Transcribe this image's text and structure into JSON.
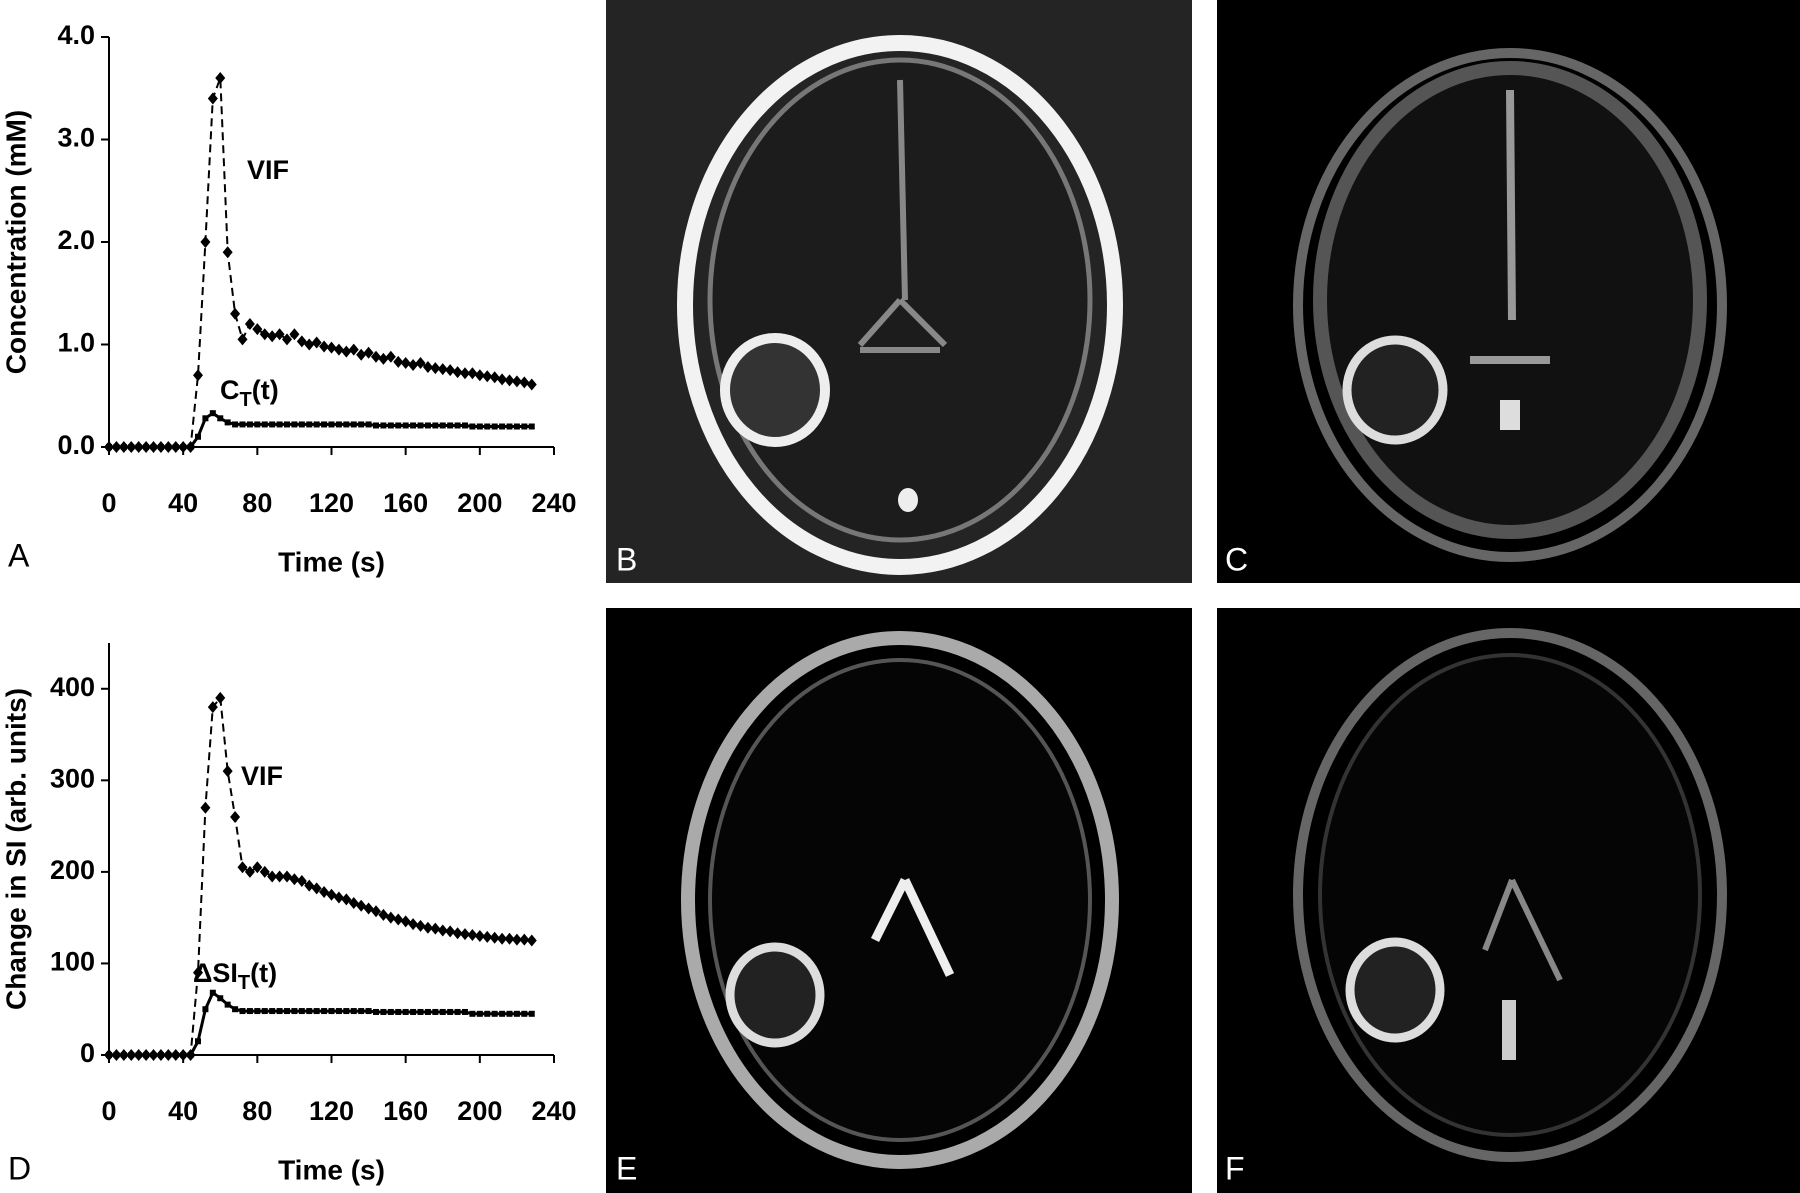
{
  "chart_data": [
    {
      "type": "line",
      "x": [
        0,
        4,
        8,
        12,
        16,
        20,
        24,
        28,
        32,
        36,
        40,
        44,
        48,
        52,
        56,
        60,
        64,
        68,
        72,
        76,
        80,
        84,
        88,
        92,
        96,
        100,
        104,
        108,
        112,
        116,
        120,
        124,
        128,
        132,
        136,
        140,
        144,
        148,
        152,
        156,
        160,
        164,
        168,
        172,
        176,
        180,
        184,
        188,
        192,
        196,
        200,
        204,
        208,
        212,
        216,
        220,
        224,
        228
      ],
      "series": [
        {
          "name": "VIF",
          "color": "#000000",
          "dash": true,
          "marker": "diamond",
          "values": [
            0,
            0,
            0,
            0,
            0,
            0,
            0,
            0,
            0,
            0,
            0,
            0,
            0.7,
            2.0,
            3.4,
            3.6,
            1.9,
            1.3,
            1.05,
            1.2,
            1.15,
            1.1,
            1.08,
            1.1,
            1.05,
            1.1,
            1.03,
            1.0,
            1.02,
            0.98,
            0.97,
            0.95,
            0.93,
            0.95,
            0.9,
            0.92,
            0.88,
            0.86,
            0.88,
            0.83,
            0.82,
            0.8,
            0.82,
            0.78,
            0.77,
            0.76,
            0.75,
            0.73,
            0.72,
            0.72,
            0.7,
            0.69,
            0.68,
            0.66,
            0.65,
            0.64,
            0.63,
            0.61
          ]
        },
        {
          "name": "C",
          "name_subscript": "T",
          "name_suffix": "(t)",
          "color": "#000000",
          "dash": false,
          "marker": "square",
          "values": [
            0,
            0,
            0,
            0,
            0,
            0,
            0,
            0,
            0,
            0,
            0,
            0,
            0.1,
            0.28,
            0.33,
            0.28,
            0.24,
            0.22,
            0.22,
            0.22,
            0.22,
            0.22,
            0.22,
            0.22,
            0.22,
            0.22,
            0.22,
            0.22,
            0.22,
            0.22,
            0.22,
            0.22,
            0.22,
            0.22,
            0.22,
            0.22,
            0.21,
            0.21,
            0.21,
            0.21,
            0.21,
            0.21,
            0.21,
            0.21,
            0.21,
            0.21,
            0.21,
            0.21,
            0.21,
            0.2,
            0.2,
            0.2,
            0.2,
            0.2,
            0.2,
            0.2,
            0.2,
            0.2
          ]
        }
      ],
      "x_label": "Time (s)",
      "y_label": "Concentration (mM)",
      "xlim": [
        0,
        240
      ],
      "xticks": [
        0,
        40,
        80,
        120,
        160,
        200,
        240
      ],
      "ylim": [
        0,
        4
      ],
      "yticks": [
        {
          "value": 0,
          "label": "0.0"
        },
        {
          "value": 1,
          "label": "1.0"
        },
        {
          "value": 2,
          "label": "2.0"
        },
        {
          "value": 3,
          "label": "3.0"
        },
        {
          "value": 4,
          "label": "4.0"
        }
      ]
    },
    {
      "type": "line",
      "x": [
        0,
        4,
        8,
        12,
        16,
        20,
        24,
        28,
        32,
        36,
        40,
        44,
        48,
        52,
        56,
        60,
        64,
        68,
        72,
        76,
        80,
        84,
        88,
        92,
        96,
        100,
        104,
        108,
        112,
        116,
        120,
        124,
        128,
        132,
        136,
        140,
        144,
        148,
        152,
        156,
        160,
        164,
        168,
        172,
        176,
        180,
        184,
        188,
        192,
        196,
        200,
        204,
        208,
        212,
        216,
        220,
        224,
        228
      ],
      "series": [
        {
          "name": "VIF",
          "color": "#000000",
          "dash": true,
          "marker": "diamond",
          "values": [
            0,
            0,
            0,
            0,
            0,
            0,
            0,
            0,
            0,
            0,
            0,
            0,
            90,
            270,
            380,
            390,
            310,
            260,
            205,
            200,
            205,
            200,
            195,
            195,
            195,
            192,
            190,
            185,
            182,
            178,
            175,
            172,
            170,
            166,
            163,
            160,
            157,
            153,
            150,
            148,
            146,
            143,
            141,
            139,
            138,
            136,
            135,
            133,
            132,
            131,
            130,
            129,
            128,
            127,
            127,
            126,
            126,
            125
          ]
        },
        {
          "name": "ΔSI",
          "name_subscript": "T",
          "name_suffix": "(t)",
          "color": "#000000",
          "dash": false,
          "marker": "square",
          "values": [
            0,
            0,
            0,
            0,
            0,
            0,
            0,
            0,
            0,
            0,
            0,
            0,
            15,
            50,
            68,
            62,
            55,
            50,
            48,
            48,
            48,
            48,
            48,
            48,
            48,
            48,
            48,
            48,
            48,
            48,
            48,
            48,
            48,
            48,
            48,
            48,
            47,
            47,
            47,
            47,
            47,
            47,
            47,
            47,
            47,
            47,
            47,
            47,
            47,
            45,
            45,
            45,
            45,
            45,
            45,
            45,
            45,
            45
          ]
        }
      ],
      "x_label": "Time (s)",
      "y_label": "Change in SI  (arb. units)",
      "xlim": [
        0,
        240
      ],
      "xticks": [
        0,
        40,
        80,
        120,
        160,
        200,
        240
      ],
      "ylim": [
        0,
        450
      ],
      "yticks": [
        0,
        100,
        200,
        300,
        400
      ]
    }
  ],
  "panel_labels": [
    "A",
    "B",
    "C",
    "D",
    "E",
    "F"
  ]
}
